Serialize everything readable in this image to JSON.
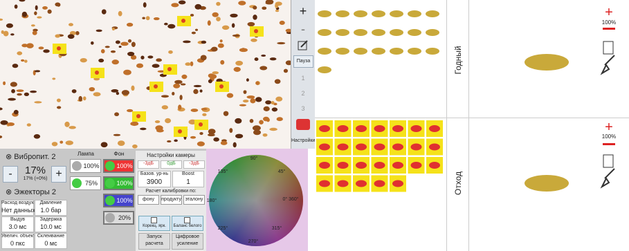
{
  "vibro": {
    "title": "Вибропит. 2",
    "minus": "-",
    "value": "17%",
    "sub": "17% (+0%)",
    "plus": "+"
  },
  "ejectors": {
    "title": "Эжекторы 2",
    "cells": [
      [
        "Расход воздуха",
        "Нет данных"
      ],
      [
        "Давление",
        "1.0 бар"
      ],
      [
        "Выдув",
        "3.0 мс"
      ],
      [
        "Задержка",
        "10.0 мс"
      ],
      [
        "Увелич. объекта",
        "0 пкс"
      ],
      [
        "Склеивание",
        "0 мс"
      ]
    ]
  },
  "lamp": {
    "title": "Лампа",
    "values": [
      "100%",
      "75%"
    ]
  },
  "background": {
    "title": "Фон",
    "values": [
      "100%",
      "100%",
      "100%",
      "20%"
    ]
  },
  "camera": {
    "title": "Настройки камеры",
    "gains": [
      "-3дБ",
      "0дБ",
      "-3дБ"
    ],
    "base_label": "Базов. ур-нь",
    "base_value": "3900",
    "boost_label": "Boost",
    "boost_value": "1",
    "calib_title": "Расчет калибровки по:",
    "calib": [
      "фону",
      "продукту",
      "эталону"
    ],
    "checks": [
      "Корекц. ярк.",
      "Баланс белого"
    ],
    "buttons": [
      "Запуск расчета",
      "Цифровое усиление"
    ]
  },
  "wheel": {
    "labels": [
      "90°",
      "45°",
      "135°",
      "180°",
      "0° 360°",
      "225°",
      "315°",
      "270°"
    ]
  },
  "toolbar": {
    "plus": "+",
    "minus": "-",
    "pause": "Пауза",
    "slots": [
      "1",
      "2",
      "3"
    ],
    "settings": "Настройки"
  },
  "classes": [
    {
      "name": "Годный",
      "percent": "100%"
    },
    {
      "name": "Отход",
      "percent": "100%"
    }
  ]
}
